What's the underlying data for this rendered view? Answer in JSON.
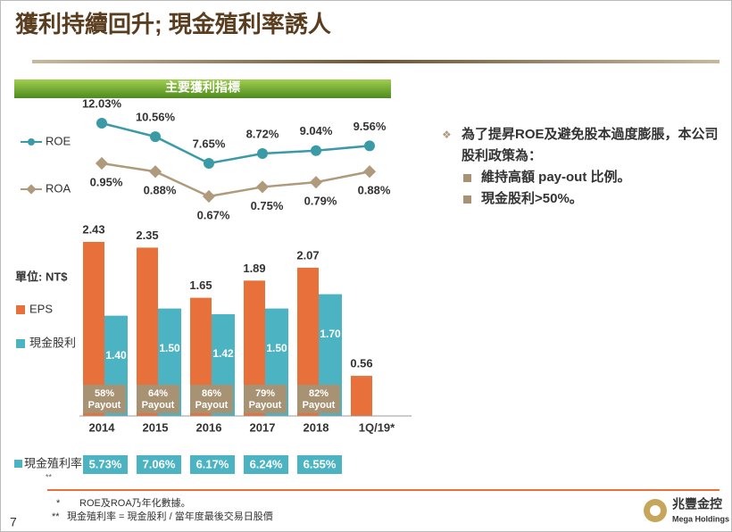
{
  "title": "獲利持續回升; 現金殖利率誘人",
  "section_label": "主要獲利指標",
  "bullets": {
    "main": "為了提昇ROE及避免股本過度膨脹，本公司股利政策為：",
    "items": [
      "維持高額 pay-out 比例。",
      "現金股利>50%。"
    ]
  },
  "footnotes": [
    {
      "marker": "*",
      "text": "ROE及ROA乃年化數據。"
    },
    {
      "marker": "**",
      "text": "現金殖利率 = 現金股利 / 當年度最後交易日股價"
    }
  ],
  "page_number": "7",
  "logo": {
    "name": "兆豐金控",
    "subname": "Mega Holdings"
  },
  "chart_data": [
    {
      "type": "line",
      "categories": [
        "2014",
        "2015",
        "2016",
        "2017",
        "2018",
        "1Q/19*"
      ],
      "series": [
        {
          "name": "ROE",
          "color": "#3a9aa6",
          "values": [
            12.03,
            10.56,
            7.65,
            8.72,
            9.04,
            9.56
          ],
          "value_labels": [
            "12.03%",
            "10.56%",
            "7.65%",
            "8.72%",
            "9.04%",
            "9.56%"
          ]
        },
        {
          "name": "ROA",
          "color": "#b09a7c",
          "axis": "y2",
          "values": [
            0.95,
            0.88,
            0.67,
            0.75,
            0.79,
            0.88
          ],
          "value_labels": [
            "0.95%",
            "0.88%",
            "0.67%",
            "0.75%",
            "0.79%",
            "0.88%"
          ]
        }
      ]
    },
    {
      "type": "bar",
      "unit_label": "單位: NT$",
      "categories": [
        "2014",
        "2015",
        "2016",
        "2017",
        "2018",
        "1Q/19*"
      ],
      "series": [
        {
          "name": "EPS",
          "color": "#e8703a",
          "values": [
            2.43,
            2.35,
            1.65,
            1.89,
            2.07,
            0.56
          ]
        },
        {
          "name": "現金股利",
          "color": "#4bb3c2",
          "values": [
            1.4,
            1.5,
            1.42,
            1.5,
            1.7,
            null
          ],
          "value_labels": [
            "1.40",
            "1.50",
            "1.42",
            "1.50",
            "1.70",
            null
          ]
        }
      ],
      "payout": {
        "label": "Payout",
        "color": "#a89274",
        "values": [
          58,
          64,
          86,
          79,
          82
        ],
        "value_labels": [
          "58%",
          "64%",
          "86%",
          "79%",
          "82%"
        ]
      },
      "yield": {
        "label": "現金殖利率",
        "marker": "**",
        "color": "#4bb3c2",
        "values": [
          5.73,
          7.06,
          6.17,
          6.24,
          6.55
        ],
        "value_labels": [
          "5.73%",
          "7.06%",
          "6.17%",
          "6.24%",
          "6.55%"
        ]
      }
    }
  ]
}
